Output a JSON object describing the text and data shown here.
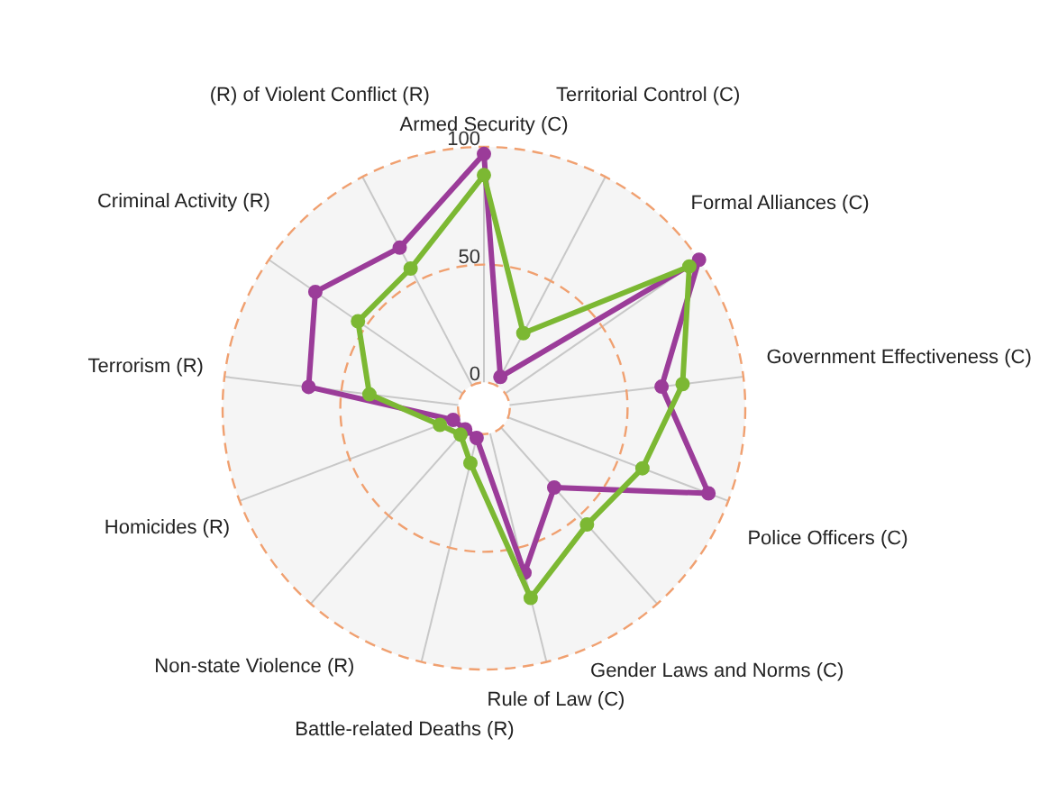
{
  "chart_data": {
    "type": "radar",
    "categories": [
      "Armed Security (C)",
      "Territorial Control (C)",
      "Formal Alliances (C)",
      "Government Effectiveness (C)",
      "Police Officers (C)",
      "Gender Laws and Norms (C)",
      "Rule of Law (C)",
      "Battle-related Deaths (R)",
      "Non-state Violence (R)",
      "Homicides (R)",
      "Terrorism (R)",
      "Criminal Activity (R)",
      "(R) of Violent Conflict (R)"
    ],
    "series": [
      {
        "color": "#9b3c99",
        "values": [
          97,
          4,
          100,
          65,
          91,
          34,
          61,
          2,
          1,
          3,
          64,
          76,
          66
        ]
      },
      {
        "color": "#7cb833",
        "values": [
          88,
          25,
          95,
          74,
          61,
          55,
          72,
          13,
          4,
          9,
          38,
          54,
          56
        ]
      }
    ],
    "ylim": [
      -11,
      100
    ],
    "yticks": [
      0,
      50,
      100
    ],
    "grid": true,
    "marker": "circle"
  }
}
